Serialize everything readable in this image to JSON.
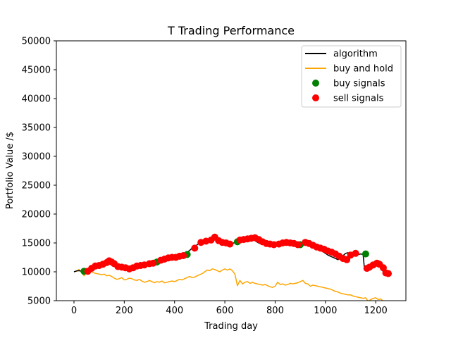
{
  "chart_data": {
    "type": "line",
    "title": "T Trading Performance",
    "xlabel": "Trading day",
    "ylabel": "Portfolio Value /$",
    "xlim": [
      -70,
      1320
    ],
    "ylim": [
      5000,
      50000
    ],
    "xticks": [
      0,
      200,
      400,
      600,
      800,
      1000,
      1200
    ],
    "yticks": [
      5000,
      10000,
      15000,
      20000,
      25000,
      30000,
      35000,
      40000,
      45000,
      50000
    ],
    "grid": false,
    "legend_position": "top-right",
    "legend": [
      "algorithm",
      "buy and hold",
      "buy signals",
      "sell signals"
    ],
    "series": [
      {
        "name": "algorithm",
        "kind": "line",
        "color": "#000000",
        "x": [
          0,
          10,
          20,
          30,
          40,
          45,
          50,
          60,
          70,
          80,
          90,
          100,
          110,
          120,
          130,
          140,
          150,
          160,
          170,
          180,
          190,
          200,
          210,
          220,
          230,
          240,
          250,
          260,
          270,
          280,
          290,
          300,
          310,
          320,
          330,
          340,
          350,
          360,
          370,
          380,
          390,
          400,
          410,
          420,
          430,
          440,
          450,
          460,
          470,
          480,
          490,
          500,
          510,
          520,
          530,
          540,
          550,
          560,
          570,
          580,
          590,
          600,
          610,
          620,
          630,
          640,
          650,
          660,
          670,
          680,
          690,
          700,
          710,
          720,
          730,
          740,
          750,
          760,
          770,
          780,
          790,
          800,
          810,
          820,
          830,
          840,
          850,
          860,
          870,
          880,
          890,
          900,
          910,
          920,
          930,
          940,
          950,
          960,
          970,
          980,
          990,
          1000,
          1010,
          1020,
          1030,
          1040,
          1050,
          1060,
          1070,
          1080,
          1090,
          1100,
          1110,
          1120,
          1130,
          1140,
          1150,
          1155,
          1160,
          1170,
          1180,
          1190,
          1200,
          1210,
          1220,
          1230,
          1240,
          1250
        ],
        "y": [
          10000,
          10150,
          10200,
          10100,
          9950,
          9900,
          10000,
          10300,
          10700,
          11000,
          11200,
          11300,
          11400,
          11500,
          11800,
          12000,
          11900,
          11500,
          11000,
          10700,
          10800,
          10900,
          10600,
          10500,
          10600,
          10900,
          11000,
          11100,
          11200,
          11300,
          11400,
          11500,
          11600,
          11700,
          11800,
          12000,
          12100,
          12200,
          12400,
          12500,
          12500,
          12600,
          12700,
          12800,
          12900,
          13100,
          13400,
          13700,
          14100,
          14300,
          14700,
          15000,
          15200,
          15400,
          15500,
          15700,
          15900,
          15600,
          15300,
          15100,
          15000,
          14900,
          14800,
          14700,
          14900,
          15100,
          15300,
          15500,
          15600,
          15700,
          15800,
          15900,
          15700,
          15400,
          15100,
          14900,
          14800,
          14700,
          14700,
          14800,
          14900,
          15000,
          15100,
          15100,
          15000,
          14900,
          14800,
          14700,
          14600,
          14500,
          14700,
          14900,
          15000,
          14900,
          14700,
          14500,
          14300,
          14100,
          13900,
          13700,
          13500,
          13200,
          12900,
          12700,
          12500,
          12300,
          12100,
          12400,
          12800,
          13200,
          13300,
          13000,
          12800,
          12900,
          13000,
          13100,
          13000,
          10600,
          10800,
          11000,
          11200,
          11400,
          11300,
          11000,
          10700,
          10000,
          9800,
          9700
        ]
      },
      {
        "name": "buy and hold",
        "kind": "line",
        "color": "#FFA500",
        "x": [
          0,
          10,
          20,
          30,
          40,
          50,
          60,
          70,
          80,
          90,
          100,
          110,
          120,
          130,
          140,
          150,
          160,
          170,
          180,
          190,
          200,
          210,
          220,
          230,
          240,
          250,
          260,
          270,
          280,
          290,
          300,
          310,
          320,
          330,
          340,
          350,
          360,
          370,
          380,
          390,
          400,
          410,
          420,
          430,
          440,
          450,
          460,
          470,
          480,
          490,
          500,
          510,
          520,
          530,
          540,
          550,
          560,
          570,
          580,
          590,
          600,
          610,
          620,
          630,
          640,
          650,
          660,
          670,
          680,
          690,
          700,
          710,
          720,
          730,
          740,
          750,
          760,
          770,
          780,
          790,
          800,
          810,
          820,
          830,
          840,
          850,
          860,
          870,
          880,
          890,
          900,
          910,
          920,
          930,
          940,
          950,
          960,
          970,
          980,
          990,
          1000,
          1010,
          1020,
          1030,
          1040,
          1050,
          1060,
          1070,
          1080,
          1090,
          1100,
          1110,
          1120,
          1130,
          1140,
          1150,
          1160,
          1170,
          1180,
          1190,
          1200,
          1210,
          1220,
          1230
        ],
        "y": [
          10000,
          10100,
          10400,
          9900,
          9300,
          9900,
          10200,
          10000,
          9800,
          9700,
          9600,
          9500,
          9600,
          9300,
          9400,
          9200,
          8900,
          8700,
          8800,
          9000,
          8600,
          8700,
          8900,
          8800,
          8600,
          8500,
          8700,
          8400,
          8200,
          8300,
          8500,
          8300,
          8100,
          8300,
          8200,
          8400,
          8100,
          8200,
          8300,
          8400,
          8300,
          8500,
          8700,
          8600,
          8800,
          9000,
          9200,
          9000,
          9100,
          9300,
          9500,
          9700,
          10000,
          10300,
          10200,
          10500,
          10400,
          10200,
          10000,
          10300,
          10500,
          10300,
          10500,
          10200,
          9600,
          7600,
          8500,
          7900,
          8200,
          8300,
          8000,
          8200,
          8000,
          7900,
          7800,
          7700,
          7800,
          7600,
          7400,
          7300,
          7500,
          8200,
          7800,
          7900,
          7700,
          7800,
          8000,
          7900,
          8000,
          8100,
          8300,
          8500,
          8000,
          7900,
          7500,
          7700,
          7600,
          7500,
          7400,
          7300,
          7200,
          7100,
          7000,
          6800,
          6600,
          6500,
          6300,
          6200,
          6100,
          6000,
          6000,
          5800,
          5700,
          5600,
          5500,
          5400,
          5500,
          4900,
          5200,
          5400,
          5500,
          5200,
          5300,
          4900
        ]
      },
      {
        "name": "buy signals",
        "kind": "scatter",
        "color": "#008000",
        "x": [
          40,
          330,
          450,
          650,
          900,
          1160
        ],
        "y": [
          10100,
          11700,
          13000,
          15200,
          14700,
          13100
        ]
      },
      {
        "name": "sell signals",
        "kind": "scatter",
        "color": "#FF0000",
        "x": [
          55,
          70,
          85,
          100,
          115,
          130,
          140,
          150,
          160,
          175,
          190,
          205,
          220,
          235,
          250,
          265,
          280,
          300,
          315,
          345,
          360,
          375,
          390,
          405,
          420,
          435,
          480,
          505,
          525,
          545,
          560,
          575,
          590,
          605,
          620,
          660,
          675,
          690,
          705,
          720,
          735,
          750,
          765,
          780,
          795,
          815,
          830,
          845,
          860,
          875,
          890,
          920,
          935,
          950,
          965,
          980,
          995,
          1010,
          1025,
          1040,
          1055,
          1070,
          1085,
          1100,
          1120,
          1165,
          1175,
          1190,
          1205,
          1215,
          1230,
          1240,
          1250
        ],
        "y": [
          10100,
          10600,
          11000,
          11100,
          11300,
          11600,
          11900,
          11700,
          11400,
          10900,
          10800,
          10700,
          10500,
          10700,
          11000,
          11100,
          11200,
          11400,
          11500,
          12000,
          12200,
          12400,
          12500,
          12500,
          12700,
          12800,
          14100,
          15100,
          15300,
          15500,
          16000,
          15400,
          15100,
          15000,
          14800,
          15500,
          15600,
          15700,
          15800,
          15900,
          15600,
          15200,
          14900,
          14800,
          14700,
          14800,
          15000,
          15100,
          15000,
          14900,
          14700,
          15100,
          14900,
          14600,
          14300,
          14100,
          13900,
          13600,
          13400,
          13100,
          12700,
          12300,
          12100,
          12900,
          13200,
          10600,
          10800,
          11200,
          11500,
          11300,
          10700,
          9800,
          9700
        ]
      }
    ]
  }
}
